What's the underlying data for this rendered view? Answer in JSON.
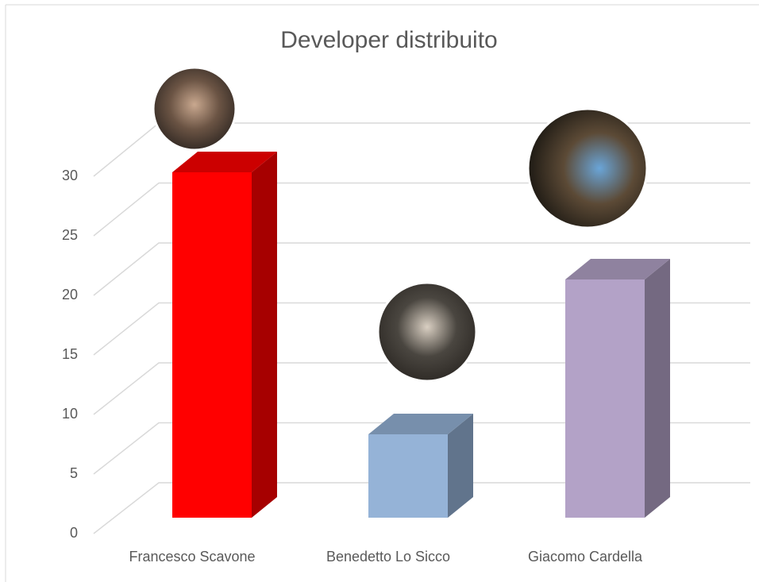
{
  "chart_data": {
    "type": "bar3d",
    "title": "Developer distribuito",
    "categories": [
      "Francesco Scavone",
      "Benedetto Lo Sicco",
      "Giacomo Cardella"
    ],
    "values": [
      29,
      7,
      20
    ],
    "colors": [
      "#ff0000",
      "#95b3d7",
      "#b3a2c7"
    ],
    "ylim": [
      0,
      30
    ],
    "yticks": [
      0,
      5,
      10,
      15,
      20,
      25,
      30
    ],
    "grid": true
  }
}
